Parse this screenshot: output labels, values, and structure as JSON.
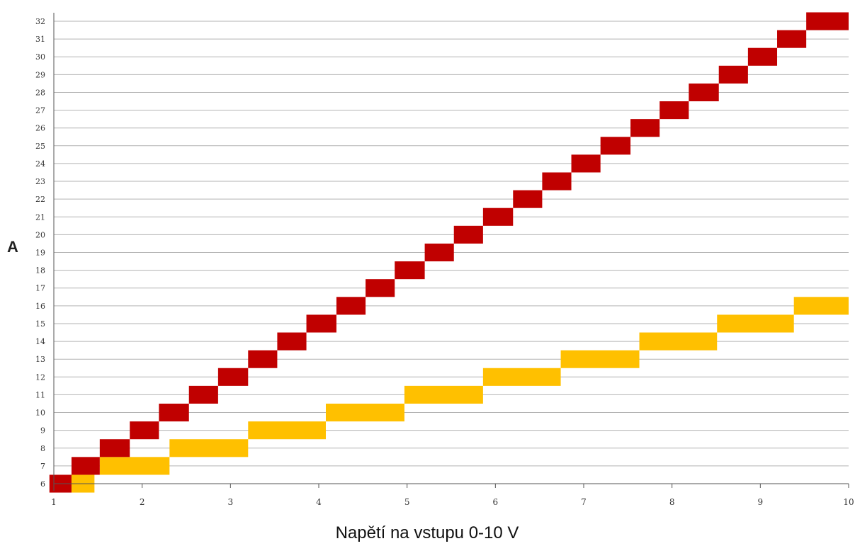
{
  "chart_data": {
    "type": "bar",
    "xlabel": "Napětí na vstupu 0-10 V",
    "ylabel": "A",
    "x_ticks": [
      "1",
      "2",
      "3",
      "4",
      "5",
      "6",
      "7",
      "8",
      "9",
      "10"
    ],
    "y_tick_labels": [
      "6",
      "7",
      "8",
      "9",
      "10",
      "11",
      "12",
      "13",
      "14",
      "15",
      "16",
      "17",
      "18",
      "19",
      "20",
      "21",
      "22",
      "23",
      "24",
      "25",
      "26",
      "27",
      "28",
      "29",
      "30",
      "31",
      "32"
    ],
    "xlim": [
      1,
      10
    ],
    "ylim": [
      6,
      32
    ],
    "grid": true,
    "series": [
      {
        "color": "#c00000",
        "steps": [
          {
            "x0": 0.95,
            "x1": 1.2,
            "y": 6
          },
          {
            "x0": 1.2,
            "x1": 1.52,
            "y": 7
          },
          {
            "x0": 1.52,
            "x1": 1.86,
            "y": 8
          },
          {
            "x0": 1.86,
            "x1": 2.19,
            "y": 9
          },
          {
            "x0": 2.19,
            "x1": 2.53,
            "y": 10
          },
          {
            "x0": 2.53,
            "x1": 2.86,
            "y": 11
          },
          {
            "x0": 2.86,
            "x1": 3.2,
            "y": 12
          },
          {
            "x0": 3.2,
            "x1": 3.53,
            "y": 13
          },
          {
            "x0": 3.53,
            "x1": 3.86,
            "y": 14
          },
          {
            "x0": 3.86,
            "x1": 4.2,
            "y": 15
          },
          {
            "x0": 4.2,
            "x1": 4.53,
            "y": 16
          },
          {
            "x0": 4.53,
            "x1": 4.86,
            "y": 17
          },
          {
            "x0": 4.86,
            "x1": 5.2,
            "y": 18
          },
          {
            "x0": 5.2,
            "x1": 5.53,
            "y": 19
          },
          {
            "x0": 5.53,
            "x1": 5.86,
            "y": 20
          },
          {
            "x0": 5.86,
            "x1": 6.2,
            "y": 21
          },
          {
            "x0": 6.2,
            "x1": 6.53,
            "y": 22
          },
          {
            "x0": 6.53,
            "x1": 6.86,
            "y": 23
          },
          {
            "x0": 6.86,
            "x1": 7.19,
            "y": 24
          },
          {
            "x0": 7.19,
            "x1": 7.53,
            "y": 25
          },
          {
            "x0": 7.53,
            "x1": 7.86,
            "y": 26
          },
          {
            "x0": 7.86,
            "x1": 8.19,
            "y": 27
          },
          {
            "x0": 8.19,
            "x1": 8.53,
            "y": 28
          },
          {
            "x0": 8.53,
            "x1": 8.86,
            "y": 29
          },
          {
            "x0": 8.86,
            "x1": 9.19,
            "y": 30
          },
          {
            "x0": 9.19,
            "x1": 9.52,
            "y": 31
          },
          {
            "x0": 9.52,
            "x1": 10.0,
            "y": 32
          }
        ]
      },
      {
        "color": "#ffc000",
        "steps": [
          {
            "x0": 1.2,
            "x1": 1.46,
            "y": 6
          },
          {
            "x0": 1.52,
            "x1": 2.31,
            "y": 7
          },
          {
            "x0": 2.31,
            "x1": 3.2,
            "y": 8
          },
          {
            "x0": 3.2,
            "x1": 4.08,
            "y": 9
          },
          {
            "x0": 4.08,
            "x1": 4.97,
            "y": 10
          },
          {
            "x0": 4.97,
            "x1": 5.86,
            "y": 11
          },
          {
            "x0": 5.86,
            "x1": 6.74,
            "y": 12
          },
          {
            "x0": 6.74,
            "x1": 7.63,
            "y": 13
          },
          {
            "x0": 7.63,
            "x1": 8.51,
            "y": 14
          },
          {
            "x0": 8.51,
            "x1": 9.38,
            "y": 15
          },
          {
            "x0": 9.38,
            "x1": 10.0,
            "y": 16
          }
        ]
      }
    ]
  }
}
